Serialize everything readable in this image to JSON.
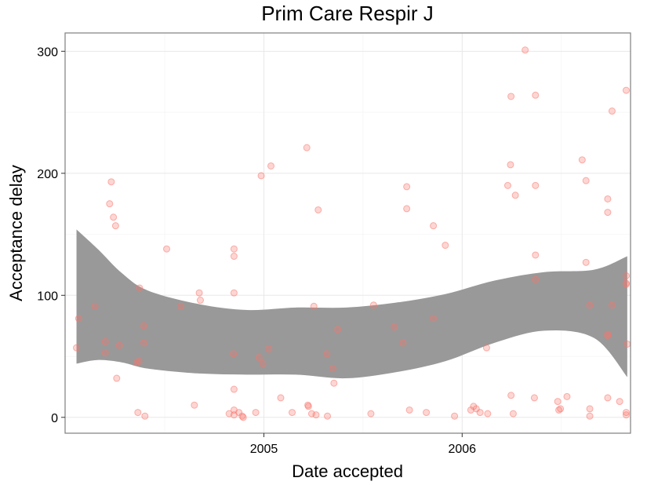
{
  "chart_data": {
    "type": "scatter",
    "title": "Prim Care Respir J",
    "xlabel": "Date accepted",
    "ylabel": "Acceptance delay",
    "x_ticks": [
      "2005",
      "2006"
    ],
    "y_ticks": [
      "0",
      "100",
      "200",
      "300"
    ],
    "xlim": [
      "2004-01-01",
      "2006-11-07"
    ],
    "ylim": [
      -13,
      315
    ],
    "grid": true,
    "point_color": "#f8766d",
    "band_color": "#999999",
    "series": [
      {
        "type": "scatter",
        "points": [
          {
            "x": "2004-01-22",
            "y": 57
          },
          {
            "x": "2004-01-26",
            "y": 81
          },
          {
            "x": "2004-02-25",
            "y": 91
          },
          {
            "x": "2004-03-15",
            "y": 62
          },
          {
            "x": "2004-03-15",
            "y": 53
          },
          {
            "x": "2004-03-23",
            "y": 175
          },
          {
            "x": "2004-03-26",
            "y": 193
          },
          {
            "x": "2004-03-30",
            "y": 164
          },
          {
            "x": "2004-04-03",
            "y": 157
          },
          {
            "x": "2004-04-05",
            "y": 32
          },
          {
            "x": "2004-04-10",
            "y": 59
          },
          {
            "x": "2004-05-12",
            "y": 45
          },
          {
            "x": "2004-05-14",
            "y": 4
          },
          {
            "x": "2004-05-16",
            "y": 46
          },
          {
            "x": "2004-05-17",
            "y": 106
          },
          {
            "x": "2004-05-25",
            "y": 75
          },
          {
            "x": "2004-05-25",
            "y": 61
          },
          {
            "x": "2004-05-27",
            "y": 1
          },
          {
            "x": "2004-07-06",
            "y": 138
          },
          {
            "x": "2004-08-01",
            "y": 91
          },
          {
            "x": "2004-08-26",
            "y": 10
          },
          {
            "x": "2004-09-04",
            "y": 102
          },
          {
            "x": "2004-09-06",
            "y": 96
          },
          {
            "x": "2004-10-29",
            "y": 3
          },
          {
            "x": "2004-11-06",
            "y": 52
          },
          {
            "x": "2004-11-07",
            "y": 6
          },
          {
            "x": "2004-11-07",
            "y": 2
          },
          {
            "x": "2004-11-07",
            "y": 23
          },
          {
            "x": "2004-11-07",
            "y": 138
          },
          {
            "x": "2004-11-07",
            "y": 132
          },
          {
            "x": "2004-11-07",
            "y": 102
          },
          {
            "x": "2004-11-16",
            "y": 4
          },
          {
            "x": "2004-11-22",
            "y": 1
          },
          {
            "x": "2004-11-24",
            "y": 0
          },
          {
            "x": "2004-12-17",
            "y": 4
          },
          {
            "x": "2004-12-23",
            "y": 49
          },
          {
            "x": "2004-12-27",
            "y": 198
          },
          {
            "x": "2004-12-30",
            "y": 44
          },
          {
            "x": "2005-01-10",
            "y": 56
          },
          {
            "x": "2005-01-14",
            "y": 206
          },
          {
            "x": "2005-02-01",
            "y": 16
          },
          {
            "x": "2005-02-22",
            "y": 4
          },
          {
            "x": "2005-03-21",
            "y": 221
          },
          {
            "x": "2005-03-23",
            "y": 10
          },
          {
            "x": "2005-03-24",
            "y": 9
          },
          {
            "x": "2005-03-30",
            "y": 3
          },
          {
            "x": "2005-04-03",
            "y": 91
          },
          {
            "x": "2005-04-07",
            "y": 2
          },
          {
            "x": "2005-04-11",
            "y": 170
          },
          {
            "x": "2005-04-27",
            "y": 52
          },
          {
            "x": "2005-04-28",
            "y": 1
          },
          {
            "x": "2005-05-08",
            "y": 40
          },
          {
            "x": "2005-05-10",
            "y": 28
          },
          {
            "x": "2005-05-17",
            "y": 72
          },
          {
            "x": "2005-07-17",
            "y": 3
          },
          {
            "x": "2005-07-22",
            "y": 92
          },
          {
            "x": "2005-08-29",
            "y": 74
          },
          {
            "x": "2005-09-14",
            "y": 61
          },
          {
            "x": "2005-09-21",
            "y": 189
          },
          {
            "x": "2005-09-21",
            "y": 171
          },
          {
            "x": "2005-09-26",
            "y": 6
          },
          {
            "x": "2005-10-27",
            "y": 4
          },
          {
            "x": "2005-11-09",
            "y": 157
          },
          {
            "x": "2005-11-09",
            "y": 81
          },
          {
            "x": "2005-12-01",
            "y": 141
          },
          {
            "x": "2005-12-18",
            "y": 1
          },
          {
            "x": "2006-01-17",
            "y": 6
          },
          {
            "x": "2006-01-22",
            "y": 9
          },
          {
            "x": "2006-01-27",
            "y": 7
          },
          {
            "x": "2006-02-03",
            "y": 4
          },
          {
            "x": "2006-02-15",
            "y": 57
          },
          {
            "x": "2006-02-17",
            "y": 3
          },
          {
            "x": "2006-03-26",
            "y": 190
          },
          {
            "x": "2006-03-31",
            "y": 207
          },
          {
            "x": "2006-04-01",
            "y": 263
          },
          {
            "x": "2006-04-01",
            "y": 18
          },
          {
            "x": "2006-04-05",
            "y": 3
          },
          {
            "x": "2006-04-09",
            "y": 182
          },
          {
            "x": "2006-04-27",
            "y": 301
          },
          {
            "x": "2006-05-14",
            "y": 16
          },
          {
            "x": "2006-05-16",
            "y": 264
          },
          {
            "x": "2006-05-16",
            "y": 190
          },
          {
            "x": "2006-05-16",
            "y": 133
          },
          {
            "x": "2006-05-16",
            "y": 113
          },
          {
            "x": "2006-06-26",
            "y": 13
          },
          {
            "x": "2006-06-28",
            "y": 6
          },
          {
            "x": "2006-07-01",
            "y": 7
          },
          {
            "x": "2006-07-13",
            "y": 17
          },
          {
            "x": "2006-08-10",
            "y": 211
          },
          {
            "x": "2006-08-17",
            "y": 194
          },
          {
            "x": "2006-08-17",
            "y": 127
          },
          {
            "x": "2006-08-24",
            "y": 92
          },
          {
            "x": "2006-08-24",
            "y": 7
          },
          {
            "x": "2006-08-24",
            "y": 1
          },
          {
            "x": "2006-09-26",
            "y": 179
          },
          {
            "x": "2006-09-26",
            "y": 168
          },
          {
            "x": "2006-09-26",
            "y": 68
          },
          {
            "x": "2006-09-26",
            "y": 67
          },
          {
            "x": "2006-09-26",
            "y": 16
          },
          {
            "x": "2006-10-04",
            "y": 251
          },
          {
            "x": "2006-10-04",
            "y": 92
          },
          {
            "x": "2006-10-18",
            "y": 13
          },
          {
            "x": "2006-10-30",
            "y": 268
          },
          {
            "x": "2006-10-30",
            "y": 116
          },
          {
            "x": "2006-10-30",
            "y": 110
          },
          {
            "x": "2006-10-30",
            "y": 109
          },
          {
            "x": "2006-10-30",
            "y": 4
          },
          {
            "x": "2006-10-30",
            "y": 2
          },
          {
            "x": "2006-11-01",
            "y": 60
          }
        ]
      },
      {
        "type": "band",
        "x": [
          "2004-01-22",
          "2004-03-01",
          "2004-04-15",
          "2004-06-01",
          "2004-09-01",
          "2004-12-01",
          "2005-03-01",
          "2005-06-01",
          "2005-09-01",
          "2005-12-01",
          "2006-03-01",
          "2006-06-01",
          "2006-09-01",
          "2006-11-01"
        ],
        "upper": [
          154,
          138,
          118,
          104,
          93,
          88,
          90,
          90,
          94,
          101,
          112,
          119,
          121,
          132
        ],
        "lower": [
          44,
          47,
          45,
          40,
          36,
          35,
          35,
          32,
          37,
          46,
          61,
          71,
          65,
          33
        ]
      }
    ]
  }
}
